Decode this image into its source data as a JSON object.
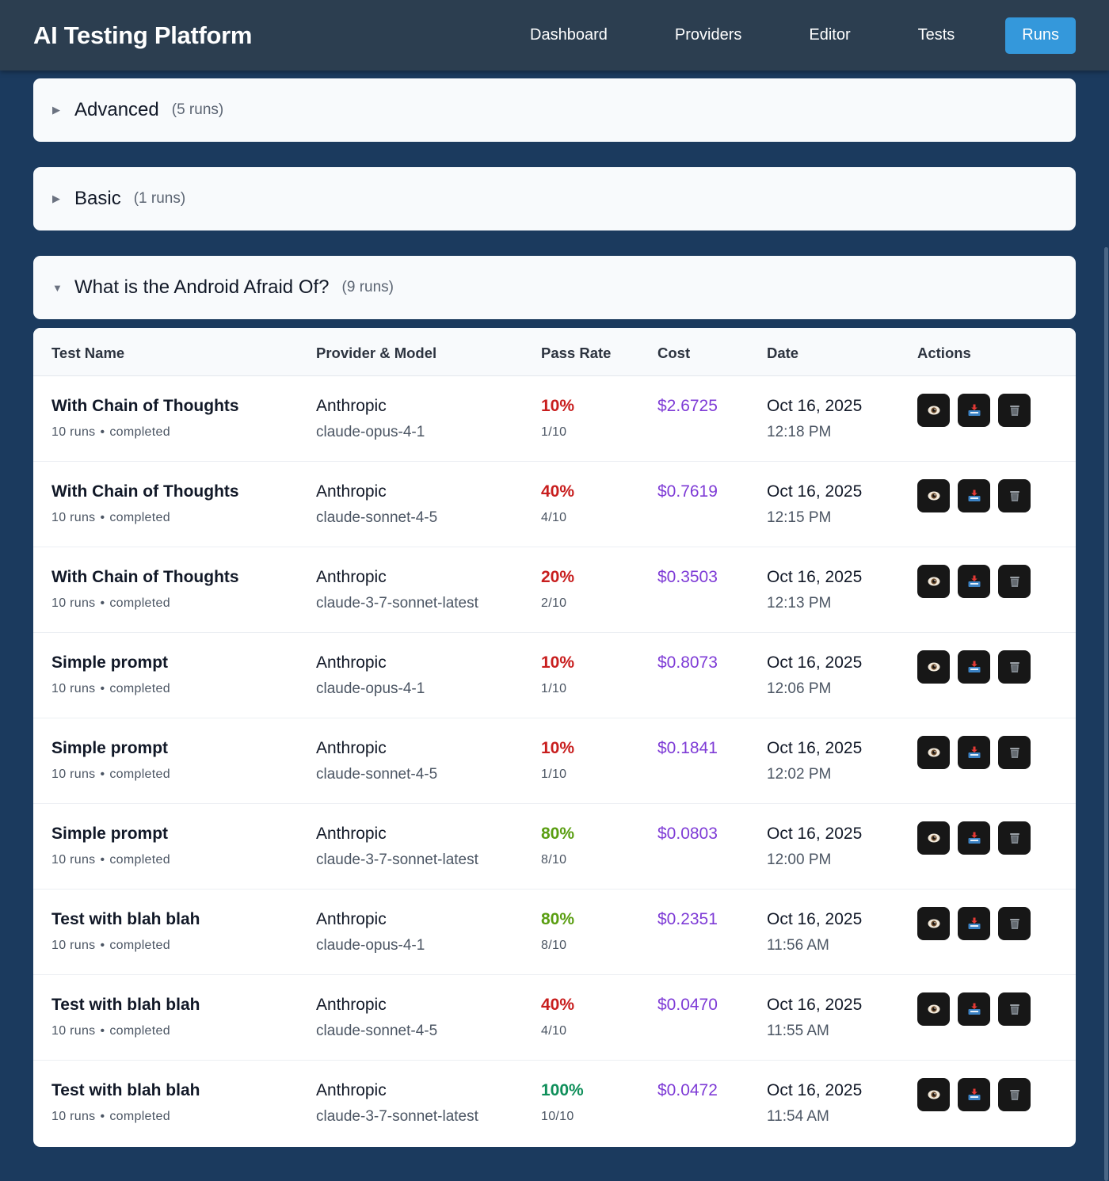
{
  "app": {
    "title": "AI Testing Platform"
  },
  "nav": [
    {
      "label": "Dashboard",
      "active": false
    },
    {
      "label": "Providers",
      "active": false
    },
    {
      "label": "Editor",
      "active": false
    },
    {
      "label": "Tests",
      "active": false
    },
    {
      "label": "Runs",
      "active": true
    }
  ],
  "groups": [
    {
      "name": "Advanced",
      "count": "(5 runs)",
      "expanded": false,
      "icon": "triangle-right-icon"
    },
    {
      "name": "Basic",
      "count": "(1 runs)",
      "expanded": false,
      "icon": "triangle-right-icon"
    },
    {
      "name": "What is the Android Afraid Of?",
      "count": "(9 runs)",
      "expanded": true,
      "icon": "triangle-down-icon"
    }
  ],
  "table": {
    "headers": [
      "Test Name",
      "Provider & Model",
      "Pass Rate",
      "Cost",
      "Date",
      "Actions"
    ],
    "rows": [
      {
        "name": "With Chain of Thoughts",
        "runs": "10 runs",
        "status": "completed",
        "provider": "Anthropic",
        "model": "claude-opus-4-1",
        "pass_rate": "10%",
        "pass_ratio": "1/10",
        "cost": "$2.6725",
        "date": "Oct 16, 2025",
        "time": "12:18 PM"
      },
      {
        "name": "With Chain of Thoughts",
        "runs": "10 runs",
        "status": "completed",
        "provider": "Anthropic",
        "model": "claude-sonnet-4-5",
        "pass_rate": "40%",
        "pass_ratio": "4/10",
        "cost": "$0.7619",
        "date": "Oct 16, 2025",
        "time": "12:15 PM"
      },
      {
        "name": "With Chain of Thoughts",
        "runs": "10 runs",
        "status": "completed",
        "provider": "Anthropic",
        "model": "claude-3-7-sonnet-latest",
        "pass_rate": "20%",
        "pass_ratio": "2/10",
        "cost": "$0.3503",
        "date": "Oct 16, 2025",
        "time": "12:13 PM"
      },
      {
        "name": "Simple prompt",
        "runs": "10 runs",
        "status": "completed",
        "provider": "Anthropic",
        "model": "claude-opus-4-1",
        "pass_rate": "10%",
        "pass_ratio": "1/10",
        "cost": "$0.8073",
        "date": "Oct 16, 2025",
        "time": "12:06 PM"
      },
      {
        "name": "Simple prompt",
        "runs": "10 runs",
        "status": "completed",
        "provider": "Anthropic",
        "model": "claude-sonnet-4-5",
        "pass_rate": "10%",
        "pass_ratio": "1/10",
        "cost": "$0.1841",
        "date": "Oct 16, 2025",
        "time": "12:02 PM"
      },
      {
        "name": "Simple prompt",
        "runs": "10 runs",
        "status": "completed",
        "provider": "Anthropic",
        "model": "claude-3-7-sonnet-latest",
        "pass_rate": "80%",
        "pass_ratio": "8/10",
        "cost": "$0.0803",
        "date": "Oct 16, 2025",
        "time": "12:00 PM"
      },
      {
        "name": "Test with blah blah",
        "runs": "10 runs",
        "status": "completed",
        "provider": "Anthropic",
        "model": "claude-opus-4-1",
        "pass_rate": "80%",
        "pass_ratio": "8/10",
        "cost": "$0.2351",
        "date": "Oct 16, 2025",
        "time": "11:56 AM"
      },
      {
        "name": "Test with blah blah",
        "runs": "10 runs",
        "status": "completed",
        "provider": "Anthropic",
        "model": "claude-sonnet-4-5",
        "pass_rate": "40%",
        "pass_ratio": "4/10",
        "cost": "$0.0470",
        "date": "Oct 16, 2025",
        "time": "11:55 AM"
      },
      {
        "name": "Test with blah blah",
        "runs": "10 runs",
        "status": "completed",
        "provider": "Anthropic",
        "model": "claude-3-7-sonnet-latest",
        "pass_rate": "100%",
        "pass_ratio": "10/10",
        "cost": "$0.0472",
        "date": "Oct 16, 2025",
        "time": "11:54 AM"
      }
    ],
    "actions": [
      {
        "name": "view-button",
        "icon": "eye-icon"
      },
      {
        "name": "export-button",
        "icon": "inbox-tray-icon"
      },
      {
        "name": "delete-button",
        "icon": "trash-icon"
      }
    ]
  },
  "colors": {
    "page_bg": "#1b3a5e",
    "topbar_bg": "#2c3e50",
    "active_nav": "#3498db",
    "pass_low": "#c81e1e",
    "pass_mid": "#5a9e12",
    "pass_full": "#0f8f5a",
    "cost": "#7e3bd6",
    "action_bg": "#171717"
  }
}
